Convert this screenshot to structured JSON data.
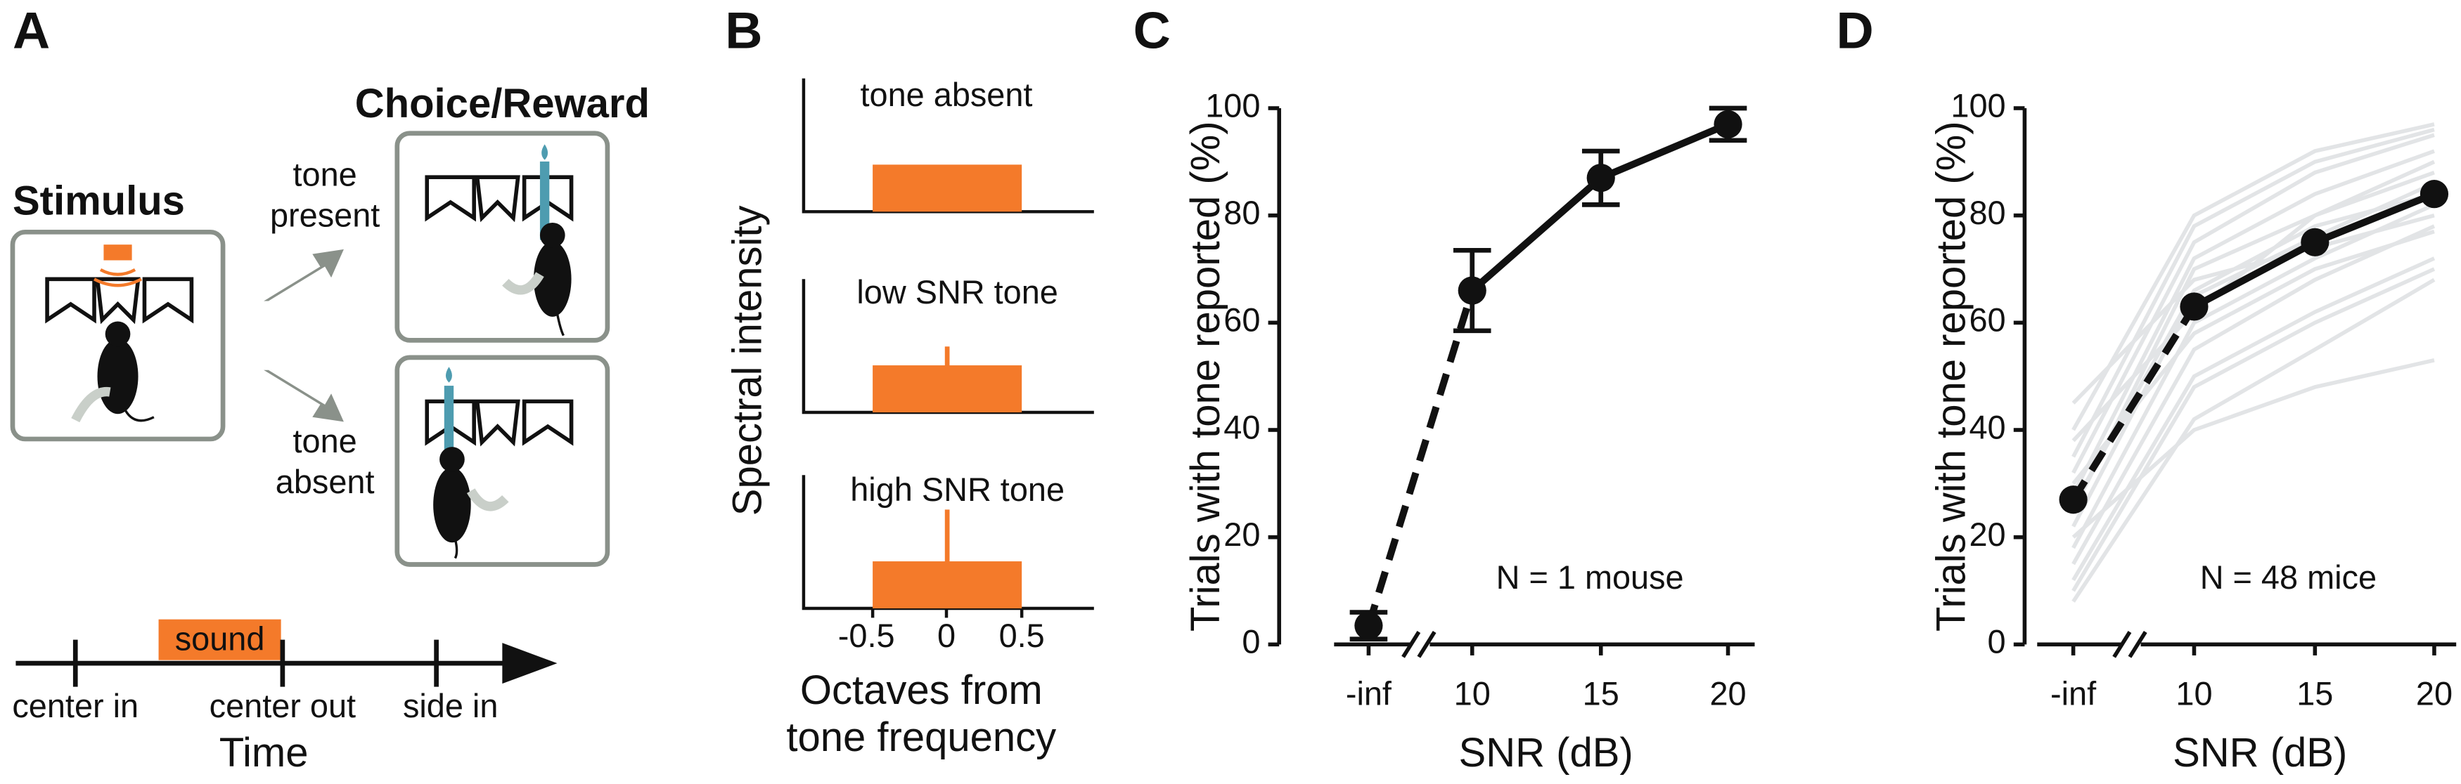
{
  "panel_a": {
    "label": "A",
    "stimulus": "Stimulus",
    "choice": "Choice/Reward",
    "tone_present": [
      "tone",
      "present"
    ],
    "tone_absent": [
      "tone",
      "absent"
    ],
    "sound": "sound",
    "events": [
      "center in",
      "center out",
      "side in"
    ],
    "axis": "Time"
  },
  "panel_b": {
    "label": "B",
    "titles": [
      "tone absent",
      "low SNR tone",
      "high SNR tone"
    ],
    "ylabel": "Spectral intensity",
    "xticks": [
      "-0.5",
      "0",
      "0.5"
    ],
    "xlabel": [
      "Octaves from",
      "tone frequency"
    ]
  },
  "chart_data": [
    {
      "type": "line",
      "panel": "C",
      "categories": [
        "-inf",
        "10",
        "15",
        "20"
      ],
      "values": [
        3.5,
        66,
        87,
        97
      ],
      "errors": [
        2.5,
        7.5,
        5,
        3
      ],
      "color": "#111111",
      "ylim": [
        0,
        100
      ],
      "yticks": [
        0,
        20,
        40,
        60,
        80,
        100
      ],
      "xlabel": "SNR (dB)",
      "ylabel": "Trials with tone reported (%)",
      "annotation": "N = 1 mouse"
    },
    {
      "type": "line",
      "panel": "D",
      "categories": [
        "-inf",
        "10",
        "15",
        "20"
      ],
      "values": [
        27,
        63,
        75,
        84
      ],
      "color": "#111111",
      "individual_color": "#e2e4e6",
      "individual": [
        [
          8,
          42,
          55,
          68
        ],
        [
          12,
          50,
          62,
          72
        ],
        [
          15,
          55,
          68,
          78
        ],
        [
          18,
          60,
          72,
          82
        ],
        [
          22,
          65,
          76,
          86
        ],
        [
          25,
          70,
          80,
          88
        ],
        [
          28,
          72,
          84,
          92
        ],
        [
          32,
          75,
          88,
          95
        ],
        [
          35,
          78,
          90,
          96
        ],
        [
          40,
          80,
          92,
          97
        ],
        [
          45,
          68,
          74,
          80
        ],
        [
          20,
          40,
          48,
          53
        ],
        [
          30,
          58,
          70,
          77
        ],
        [
          10,
          48,
          60,
          70
        ],
        [
          38,
          62,
          80,
          90
        ],
        [
          26,
          66,
          78,
          84
        ]
      ],
      "ylim": [
        0,
        100
      ],
      "yticks": [
        0,
        20,
        40,
        60,
        80,
        100
      ],
      "xlabel": "SNR (dB)",
      "ylabel": "Trials with tone reported (%)",
      "annotation": "N = 48 mice"
    }
  ]
}
